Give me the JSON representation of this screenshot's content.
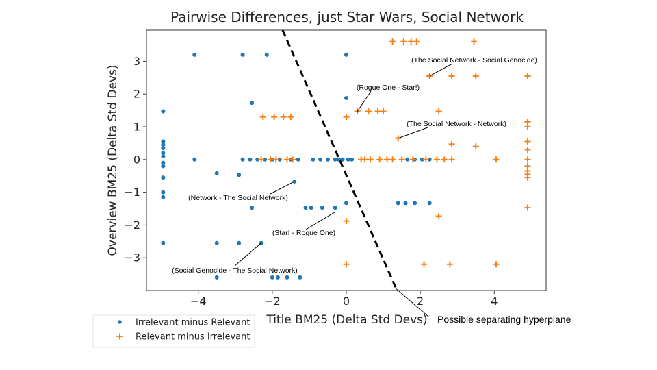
{
  "chart_data": {
    "type": "scatter",
    "title": "Pairwise Differences, just Star Wars, Social Network",
    "xlabel": "Title BM25 (Delta Std Devs)",
    "ylabel": "Overview BM25 (Delta Std Devs)",
    "xlim": [
      -5.4,
      5.4
    ],
    "ylim": [
      -4.0,
      3.95
    ],
    "xticks": [
      -4,
      -2,
      0,
      2,
      4
    ],
    "yticks": [
      -3,
      -2,
      -1,
      0,
      1,
      2,
      3
    ],
    "grid": false,
    "legend_position": "bottom-left",
    "series": [
      {
        "name": "Irrelevant minus Relevant",
        "marker": "dot",
        "color": "#1f77b4",
        "points": [
          [
            -4.1,
            3.2
          ],
          [
            -2.8,
            3.2
          ],
          [
            -2.15,
            3.2
          ],
          [
            0,
            3.2
          ],
          [
            0,
            1.88
          ],
          [
            -2.55,
            1.73
          ],
          [
            -4.95,
            1.47
          ],
          [
            -4.95,
            0.55
          ],
          [
            -4.95,
            0.45
          ],
          [
            -4.95,
            0.35
          ],
          [
            -4.95,
            0.2
          ],
          [
            -4.95,
            0.1
          ],
          [
            -4.95,
            -0.1
          ],
          [
            -4.95,
            -0.2
          ],
          [
            -4.95,
            -0.55
          ],
          [
            -4.95,
            -1.0
          ],
          [
            -4.95,
            -1.15
          ],
          [
            -4.1,
            0
          ],
          [
            -2.8,
            0
          ],
          [
            -2.6,
            0
          ],
          [
            -2.4,
            0
          ],
          [
            -2.2,
            0
          ],
          [
            -2.0,
            0
          ],
          [
            -1.8,
            0
          ],
          [
            -1.5,
            0
          ],
          [
            -1.3,
            0
          ],
          [
            -0.9,
            0
          ],
          [
            -0.7,
            0
          ],
          [
            -0.5,
            0
          ],
          [
            -0.3,
            0
          ],
          [
            -0.2,
            0
          ],
          [
            -0.1,
            0
          ],
          [
            0.05,
            0
          ],
          [
            0.15,
            0
          ],
          [
            1.65,
            0
          ],
          [
            1.85,
            0
          ],
          [
            2.05,
            0
          ],
          [
            2.25,
            0
          ],
          [
            -3.5,
            -0.42
          ],
          [
            -2.9,
            -0.47
          ],
          [
            -1.4,
            -0.67
          ],
          [
            -2.55,
            -1.47
          ],
          [
            -1.1,
            -1.47
          ],
          [
            -0.95,
            -1.47
          ],
          [
            -0.65,
            -1.47
          ],
          [
            -0.3,
            -1.47
          ],
          [
            0,
            -1.33
          ],
          [
            1.4,
            -1.33
          ],
          [
            1.6,
            -1.33
          ],
          [
            1.85,
            -1.33
          ],
          [
            2.25,
            -1.33
          ],
          [
            -4.95,
            -2.55
          ],
          [
            -3.5,
            -2.55
          ],
          [
            -2.9,
            -2.55
          ],
          [
            -2.3,
            -2.55
          ],
          [
            -3.5,
            -3.6
          ],
          [
            -2.0,
            -3.6
          ],
          [
            -1.85,
            -3.6
          ],
          [
            -1.6,
            -3.6
          ],
          [
            -1.25,
            -3.6
          ]
        ]
      },
      {
        "name": "Relevant minus Irrelevant",
        "marker": "plus",
        "color": "#ff7f0e",
        "points": [
          [
            1.25,
            3.6
          ],
          [
            1.55,
            3.6
          ],
          [
            1.75,
            3.6
          ],
          [
            1.9,
            3.6
          ],
          [
            3.45,
            3.6
          ],
          [
            2.25,
            2.55
          ],
          [
            2.85,
            2.55
          ],
          [
            3.5,
            2.55
          ],
          [
            4.9,
            2.55
          ],
          [
            0.3,
            1.47
          ],
          [
            0.6,
            1.47
          ],
          [
            0.85,
            1.47
          ],
          [
            1.0,
            1.47
          ],
          [
            2.5,
            1.47
          ],
          [
            -2.25,
            1.3
          ],
          [
            -1.95,
            1.3
          ],
          [
            -1.7,
            1.3
          ],
          [
            -1.5,
            1.3
          ],
          [
            0,
            1.3
          ],
          [
            4.9,
            1.15
          ],
          [
            4.9,
            1.0
          ],
          [
            1.4,
            0.65
          ],
          [
            4.9,
            0.55
          ],
          [
            2.85,
            0.47
          ],
          [
            3.5,
            0.4
          ],
          [
            4.9,
            0.3
          ],
          [
            -2.3,
            0
          ],
          [
            -2.05,
            0
          ],
          [
            -1.9,
            0
          ],
          [
            -1.6,
            0
          ],
          [
            -1.45,
            0
          ],
          [
            0.4,
            0
          ],
          [
            0.5,
            0
          ],
          [
            0.65,
            0
          ],
          [
            0.9,
            0
          ],
          [
            1.1,
            0
          ],
          [
            1.25,
            0
          ],
          [
            1.5,
            0
          ],
          [
            1.8,
            0
          ],
          [
            2.15,
            0
          ],
          [
            2.45,
            0
          ],
          [
            2.65,
            0
          ],
          [
            2.85,
            0
          ],
          [
            4.05,
            0
          ],
          [
            4.9,
            0
          ],
          [
            4.9,
            -0.2
          ],
          [
            4.9,
            -0.35
          ],
          [
            4.9,
            -0.45
          ],
          [
            4.9,
            -0.55
          ],
          [
            4.9,
            -1.47
          ],
          [
            2.5,
            -1.73
          ],
          [
            0,
            -1.88
          ],
          [
            0,
            -3.2
          ],
          [
            2.1,
            -3.2
          ],
          [
            2.8,
            -3.2
          ],
          [
            4.05,
            -3.2
          ]
        ]
      }
    ],
    "hyperplane": {
      "label": "Possible separating hyperplane",
      "points": [
        [
          -1.72,
          4.05
        ],
        [
          1.35,
          -3.95
        ]
      ]
    },
    "annotations": [
      {
        "text": "(The Social Network - Social Genocide)",
        "x": 2.25,
        "y": 2.55
      },
      {
        "text": "(Rogue One - Star!)",
        "x": 0.3,
        "y": 1.47
      },
      {
        "text": "(The Social Network - Network)",
        "x": 1.4,
        "y": 0.65
      },
      {
        "text": "(Network - The Social Network)",
        "x": -1.4,
        "y": -0.67
      },
      {
        "text": "(Star! - Rogue One)",
        "x": -0.3,
        "y": -1.6
      },
      {
        "text": "(Social Genocide - The Social Network)",
        "x": -2.3,
        "y": -2.55
      }
    ]
  }
}
